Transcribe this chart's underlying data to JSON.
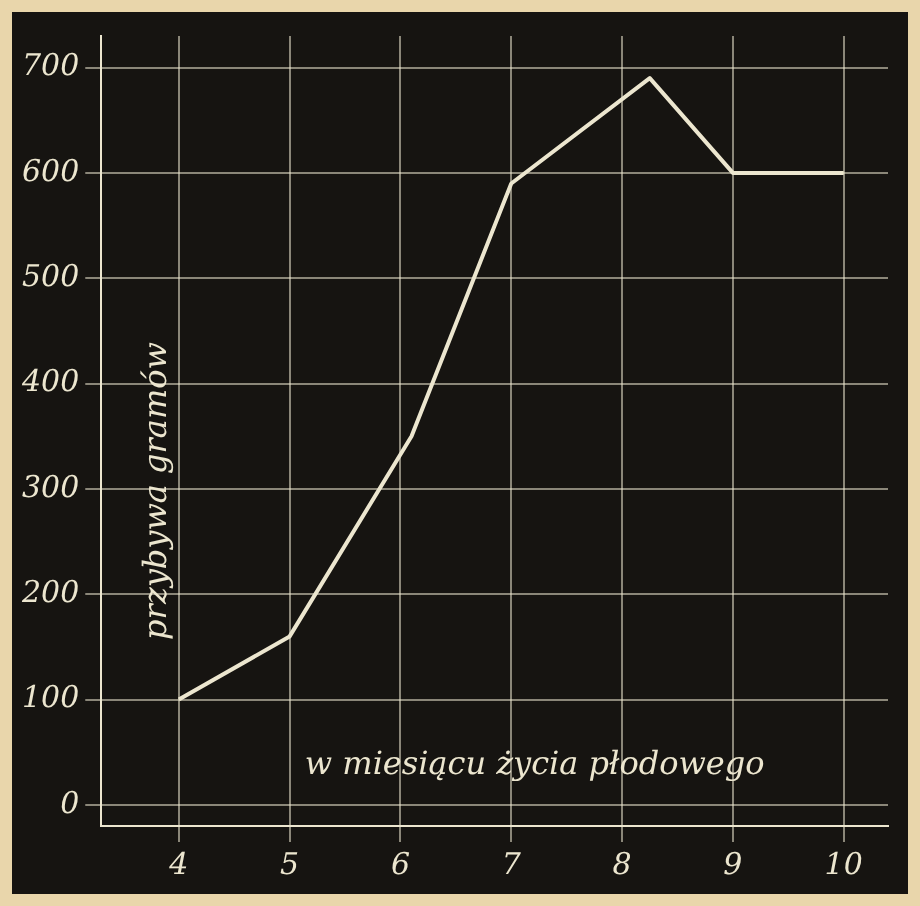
{
  "chart_data": {
    "type": "line",
    "xlabel": "w miesiącu życia płodowego",
    "ylabel": "przybywa gramów",
    "x": [
      4,
      5,
      6.1,
      7,
      8.25,
      9,
      10
    ],
    "series": [
      {
        "color": "#ece6cf",
        "values": [
          100,
          160,
          350,
          590,
          690,
          600,
          600
        ]
      }
    ],
    "xlim": [
      3.3,
      10.4
    ],
    "xticks": [
      4,
      5,
      6,
      7,
      8,
      9,
      10
    ],
    "ylim": [
      -20,
      730
    ],
    "yticks": [
      0,
      100,
      200,
      300,
      400,
      500,
      600,
      700
    ],
    "grid": true,
    "legend": false,
    "marker": "none",
    "line_style": "solid"
  }
}
